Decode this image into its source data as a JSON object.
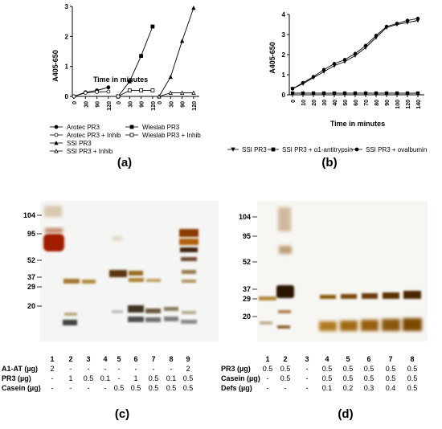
{
  "panels": {
    "a": {
      "label": "(a)",
      "chart_data": {
        "type": "line",
        "xlabel": "Time in minutes",
        "ylabel": "A405-650",
        "ylim": [
          0,
          3
        ],
        "yticks": [
          "0",
          "1",
          "2",
          "3"
        ],
        "groups": [
          {
            "xticks": [
              "0",
              "30",
              "90",
              "120"
            ],
            "series": [
              {
                "name": "Arotec PR3",
                "marker": "filled-circle",
                "values": [
                  0,
                  0.14,
                  0.2,
                  0.3
                ]
              },
              {
                "name": "Arotec PR3 + Inhib",
                "marker": "open-circle",
                "values": [
                  0,
                  0.12,
                  0.15,
                  0.16
                ]
              }
            ]
          },
          {
            "xticks": [
              "0",
              "30",
              "90",
              "120"
            ],
            "series": [
              {
                "name": "Wieslab PR3",
                "marker": "filled-square",
                "values": [
                  0,
                  0.5,
                  1.35,
                  2.33
                ]
              },
              {
                "name": "Wieslab PR3 + Inhib",
                "marker": "open-square",
                "values": [
                  0,
                  0.2,
                  0.2,
                  0.2
                ]
              }
            ]
          },
          {
            "xticks": [
              "0",
              "30",
              "90",
              "120"
            ],
            "series": [
              {
                "name": "SSI PR3",
                "marker": "filled-triangle",
                "values": [
                  0,
                  0.65,
                  1.85,
                  2.95
                ]
              },
              {
                "name": "SSI PR3 + Inhib",
                "marker": "open-triangle",
                "values": [
                  0,
                  0.12,
                  0.12,
                  0.12
                ]
              }
            ]
          }
        ],
        "legend": [
          {
            "name": "Arotec PR3",
            "marker": "filled-circle"
          },
          {
            "name": "Arotec PR3 + Inhib",
            "marker": "open-circle"
          },
          {
            "name": "SSI PR3",
            "marker": "filled-triangle"
          },
          {
            "name": "SSI PR3 + Inhib",
            "marker": "open-triangle"
          },
          {
            "name": "Wieslab PR3",
            "marker": "filled-square"
          },
          {
            "name": "Wieslab PR3 + Inhib",
            "marker": "open-square"
          }
        ]
      }
    },
    "b": {
      "label": "(b)",
      "chart_data": {
        "type": "line",
        "xlabel": "Time in minutes",
        "ylabel": "A405-650",
        "ylim": [
          0,
          4
        ],
        "yticks": [
          "0",
          "1",
          "2",
          "3",
          "4"
        ],
        "x": [
          0,
          10,
          20,
          30,
          40,
          50,
          60,
          70,
          80,
          90,
          100,
          120,
          140
        ],
        "series": [
          {
            "name": "SSI PR3",
            "marker": "down-triangle",
            "values": [
              0.3,
              0.55,
              0.85,
              1.15,
              1.45,
              1.65,
              1.95,
              2.35,
              2.85,
              3.35,
              3.5,
              3.6,
              3.7
            ]
          },
          {
            "name": "SSI PR3 + α1-antitrypsin",
            "marker": "filled-square",
            "values": [
              0.08,
              0.08,
              0.08,
              0.08,
              0.08,
              0.08,
              0.08,
              0.08,
              0.08,
              0.08,
              0.08,
              0.08,
              0.08
            ]
          },
          {
            "name": "SSI PR3 + ovalbumin",
            "marker": "filled-circle",
            "values": [
              0.3,
              0.6,
              0.9,
              1.25,
              1.55,
              1.75,
              2.05,
              2.45,
              2.95,
              3.4,
              3.55,
              3.7,
              3.8
            ]
          }
        ]
      }
    },
    "c": {
      "label": "(c)",
      "markers": [
        "104",
        "95",
        "52",
        "37",
        "29",
        "20"
      ],
      "lanes": [
        "1",
        "2",
        "3",
        "4",
        "5",
        "6",
        "7",
        "8",
        "9"
      ],
      "rows": [
        {
          "label": "A1-AT (µg)",
          "values": [
            "2",
            "-",
            "-",
            "-",
            "-",
            "-",
            "-",
            "-",
            "2"
          ]
        },
        {
          "label": "PR3 (µg)",
          "values": [
            "-",
            "1",
            "0.5",
            "0.1",
            "-",
            "1",
            "0.5",
            "0.1",
            "0.5"
          ]
        },
        {
          "label": "Casein (µg)",
          "values": [
            "-",
            "-",
            "-",
            "-",
            "0.5",
            "0.5",
            "0.5",
            "0.5",
            "0.5"
          ]
        }
      ]
    },
    "d": {
      "label": "(d)",
      "markers": [
        "104",
        "95",
        "52",
        "37",
        "29",
        "20"
      ],
      "lanes": [
        "1",
        "2",
        "3",
        "4",
        "5",
        "6",
        "7",
        "8"
      ],
      "rows": [
        {
          "label": "PR3 (µg)",
          "values": [
            "0.5",
            "0.5",
            "-",
            "0.5",
            "0.5",
            "0.5",
            "0.5",
            "0.5"
          ]
        },
        {
          "label": "Casein (µg)",
          "values": [
            "-",
            "0.5",
            "-",
            "0.5",
            "0.5",
            "0.5",
            "0.5",
            "0.5"
          ]
        },
        {
          "label": "Defs (µg)",
          "values": [
            "-",
            "-",
            "-",
            "0.1",
            "0.2",
            "0.3",
            "0.4",
            "0.5"
          ]
        }
      ]
    }
  }
}
